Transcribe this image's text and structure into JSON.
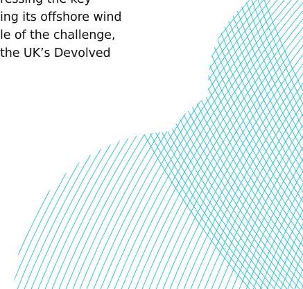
{
  "paragraph": {
    "lines": [
      "ressing the key",
      "ing its offshore wind",
      "le of the challenge,",
      "the UK’s Devolved"
    ]
  },
  "colors": {
    "text": "#111111",
    "accent": "#19c3d6",
    "background": "#ffffff"
  }
}
